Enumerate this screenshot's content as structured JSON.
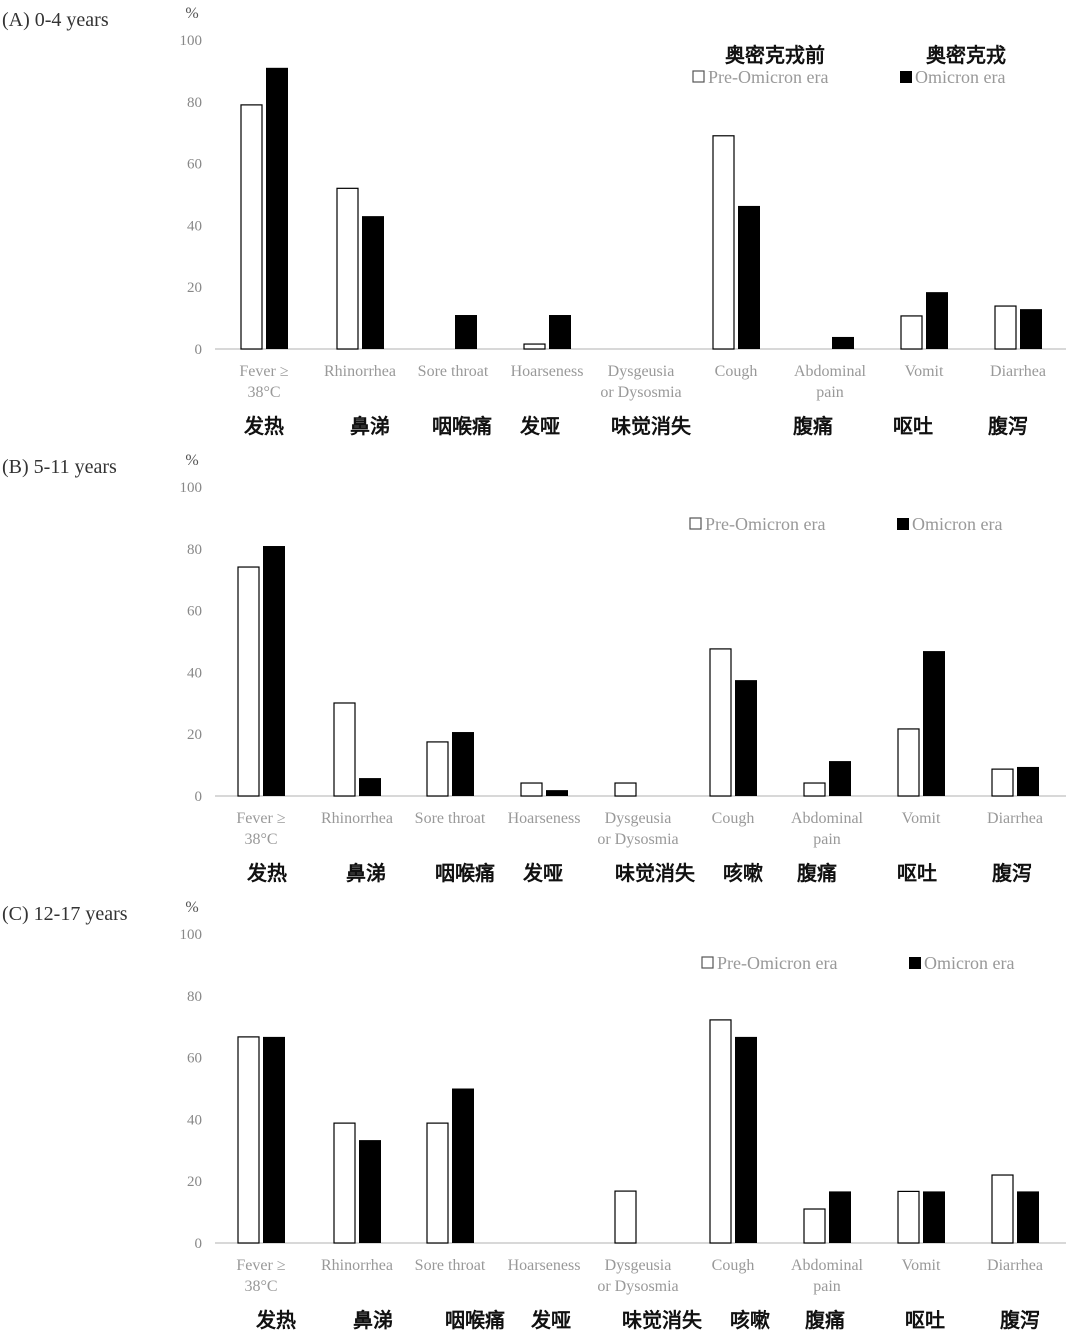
{
  "legend_cn": {
    "pre": "奥密克戎前",
    "omicron": "奥密克戎"
  },
  "chart_data": [
    {
      "type": "bar",
      "title": "(A) 0-4 years",
      "ylabel": "%",
      "ylim": [
        0,
        100
      ],
      "yticks": [
        0,
        20,
        40,
        60,
        80,
        100
      ],
      "categories": [
        "Fever ≥|38°C",
        "Rhinorrhea",
        "Sore throat",
        "Hoarseness",
        "Dysgeusia|or Dysosmia",
        "Cough",
        "Abdominal|pain",
        "Vomit",
        "Diarrhea"
      ],
      "categories_cn": [
        "发热",
        "鼻涕",
        "咽喉痛",
        "发哑",
        "味觉消失",
        "",
        "腹痛",
        "呕吐",
        "腹泻"
      ],
      "legend": "top-right",
      "series": [
        {
          "name": "Pre-Omicron era",
          "values": [
            79,
            52,
            0,
            1.6,
            0,
            69,
            0,
            10.7,
            13.9
          ]
        },
        {
          "name": "Omicron era",
          "values": [
            91,
            43,
            11,
            11,
            0,
            46.3,
            3.9,
            18.4,
            12.9
          ]
        }
      ]
    },
    {
      "type": "bar",
      "title": "(B) 5-11 years",
      "ylabel": "%",
      "ylim": [
        0,
        100
      ],
      "yticks": [
        0,
        20,
        40,
        60,
        80,
        100
      ],
      "categories": [
        "Fever ≥|38°C",
        "Rhinorrhea",
        "Sore throat",
        "Hoarseness",
        "Dysgeusia|or Dysosmia",
        "Cough",
        "Abdominal|pain",
        "Vomit",
        "Diarrhea"
      ],
      "categories_cn": [
        "发热",
        "鼻涕",
        "咽喉痛",
        "发哑",
        "味觉消失",
        "咳嗽",
        "腹痛",
        "呕吐",
        "腹泻"
      ],
      "legend": "top-right",
      "series": [
        {
          "name": "Pre-Omicron era",
          "values": [
            74.1,
            30.1,
            17.5,
            4.2,
            4.2,
            47.6,
            4.2,
            21.7,
            8.7
          ]
        },
        {
          "name": "Omicron era",
          "values": [
            80.9,
            5.8,
            20.7,
            1.9,
            0,
            37.5,
            11.3,
            46.9,
            9.4
          ]
        }
      ]
    },
    {
      "type": "bar",
      "title": "(C) 12-17 years",
      "ylabel": "%",
      "ylim": [
        0,
        100
      ],
      "yticks": [
        0,
        20,
        40,
        60,
        80,
        100
      ],
      "categories": [
        "Fever ≥|38°C",
        "Rhinorrhea",
        "Sore throat",
        "Hoarseness",
        "Dysgeusia|or Dysosmia",
        "Cough",
        "Abdominal|pain",
        "Vomit",
        "Diarrhea"
      ],
      "categories_cn": [
        "发热",
        "鼻涕",
        "咽喉痛",
        "发哑",
        "味觉消失",
        "咳嗽",
        "腹痛",
        "呕吐",
        "腹泻"
      ],
      "legend": "top-right",
      "series": [
        {
          "name": "Pre-Omicron era",
          "values": [
            66.7,
            38.8,
            38.8,
            0,
            16.8,
            72.2,
            11,
            16.7,
            22
          ]
        },
        {
          "name": "Omicron era",
          "values": [
            66.7,
            33.3,
            50,
            0,
            0,
            66.7,
            16.7,
            16.7,
            16.7
          ]
        }
      ]
    }
  ]
}
